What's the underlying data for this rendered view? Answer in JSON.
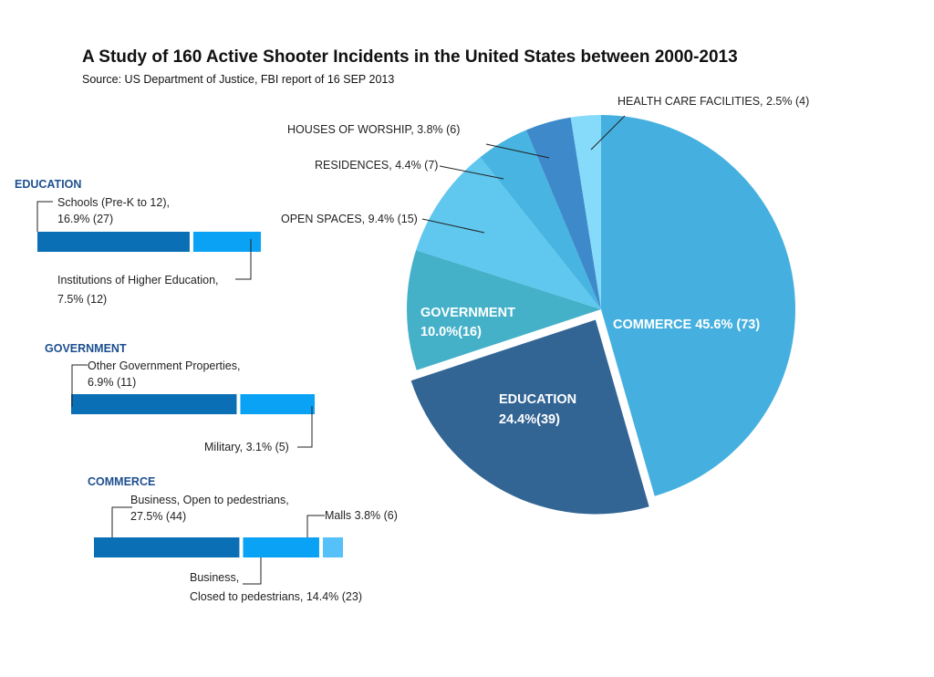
{
  "chart_data": {
    "type": "pie",
    "title": "A Study of 160 Active Shooter Incidents in the United States between 2000-2013",
    "subtitle": "Source: US Department of Justice, FBI report of 16 SEP 2013",
    "slices": [
      {
        "name": "COMMERCE",
        "percent": 45.6,
        "count": 73,
        "label": "COMMERCE 45.6% (73)",
        "color": "#45b0df"
      },
      {
        "name": "EDUCATION",
        "percent": 24.4,
        "count": 39,
        "label_line1": "EDUCATION",
        "label_line2": "24.4%(39)",
        "color": "#336594",
        "exploded": true
      },
      {
        "name": "GOVERNMENT",
        "percent": 10.0,
        "count": 16,
        "label_line1": "GOVERNMENT",
        "label_line2": "10.0%(16)",
        "color": "#45b1c9"
      },
      {
        "name": "OPEN SPACES",
        "percent": 9.4,
        "count": 15,
        "label": "OPEN SPACES, 9.4% (15)",
        "color": "#60c7ef"
      },
      {
        "name": "RESIDENCES",
        "percent": 4.4,
        "count": 7,
        "label": "RESIDENCES, 4.4% (7)",
        "color": "#48b4e1"
      },
      {
        "name": "HOUSES OF WORSHIP",
        "percent": 3.8,
        "count": 6,
        "label": "HOUSES OF WORSHIP, 3.8% (6)",
        "color": "#3d89ca"
      },
      {
        "name": "HEALTH CARE FACILITIES",
        "percent": 2.5,
        "count": 4,
        "label": "HEALTH CARE FACILITIES, 2.5% (4)",
        "color": "#86dafa"
      }
    ],
    "breakdowns": [
      {
        "group": "EDUCATION",
        "segments": [
          {
            "name": "Schools (Pre-K to 12)",
            "percent": 16.9,
            "count": 27,
            "label_line1": "Schools (Pre-K to 12),",
            "label_line2": "16.9% (27)",
            "color": "#0a6fb5"
          },
          {
            "name": "Institutions of Higher Education",
            "percent": 7.5,
            "count": 12,
            "label_line1": "Institutions of Higher Education,",
            "label_line2": "7.5% (12)",
            "color": "#0aa2f5"
          }
        ]
      },
      {
        "group": "GOVERNMENT",
        "segments": [
          {
            "name": "Other Government Properties",
            "percent": 6.9,
            "count": 11,
            "label_line1": "Other Government Properties,",
            "label_line2": "6.9% (11)",
            "color": "#0a6fb5"
          },
          {
            "name": "Military",
            "percent": 3.1,
            "count": 5,
            "label_line1": "Military, 3.1% (5)",
            "color": "#0aa2f5"
          }
        ]
      },
      {
        "group": "COMMERCE",
        "segments": [
          {
            "name": "Business, Open to pedestrians",
            "percent": 27.5,
            "count": 44,
            "label_line1": "Business, Open to pedestrians,",
            "label_line2": "27.5% (44)",
            "color": "#0a6fb5"
          },
          {
            "name": "Business, Closed to pedestrians",
            "percent": 14.4,
            "count": 23,
            "label_line1": "Business,",
            "label_line2": "Closed to pedestrians, 14.4% (23)",
            "color": "#0aa2f5"
          },
          {
            "name": "Malls",
            "percent": 3.8,
            "count": 6,
            "label_line1": "Malls 3.8% (6)",
            "color": "#56c1f8"
          }
        ]
      }
    ]
  }
}
